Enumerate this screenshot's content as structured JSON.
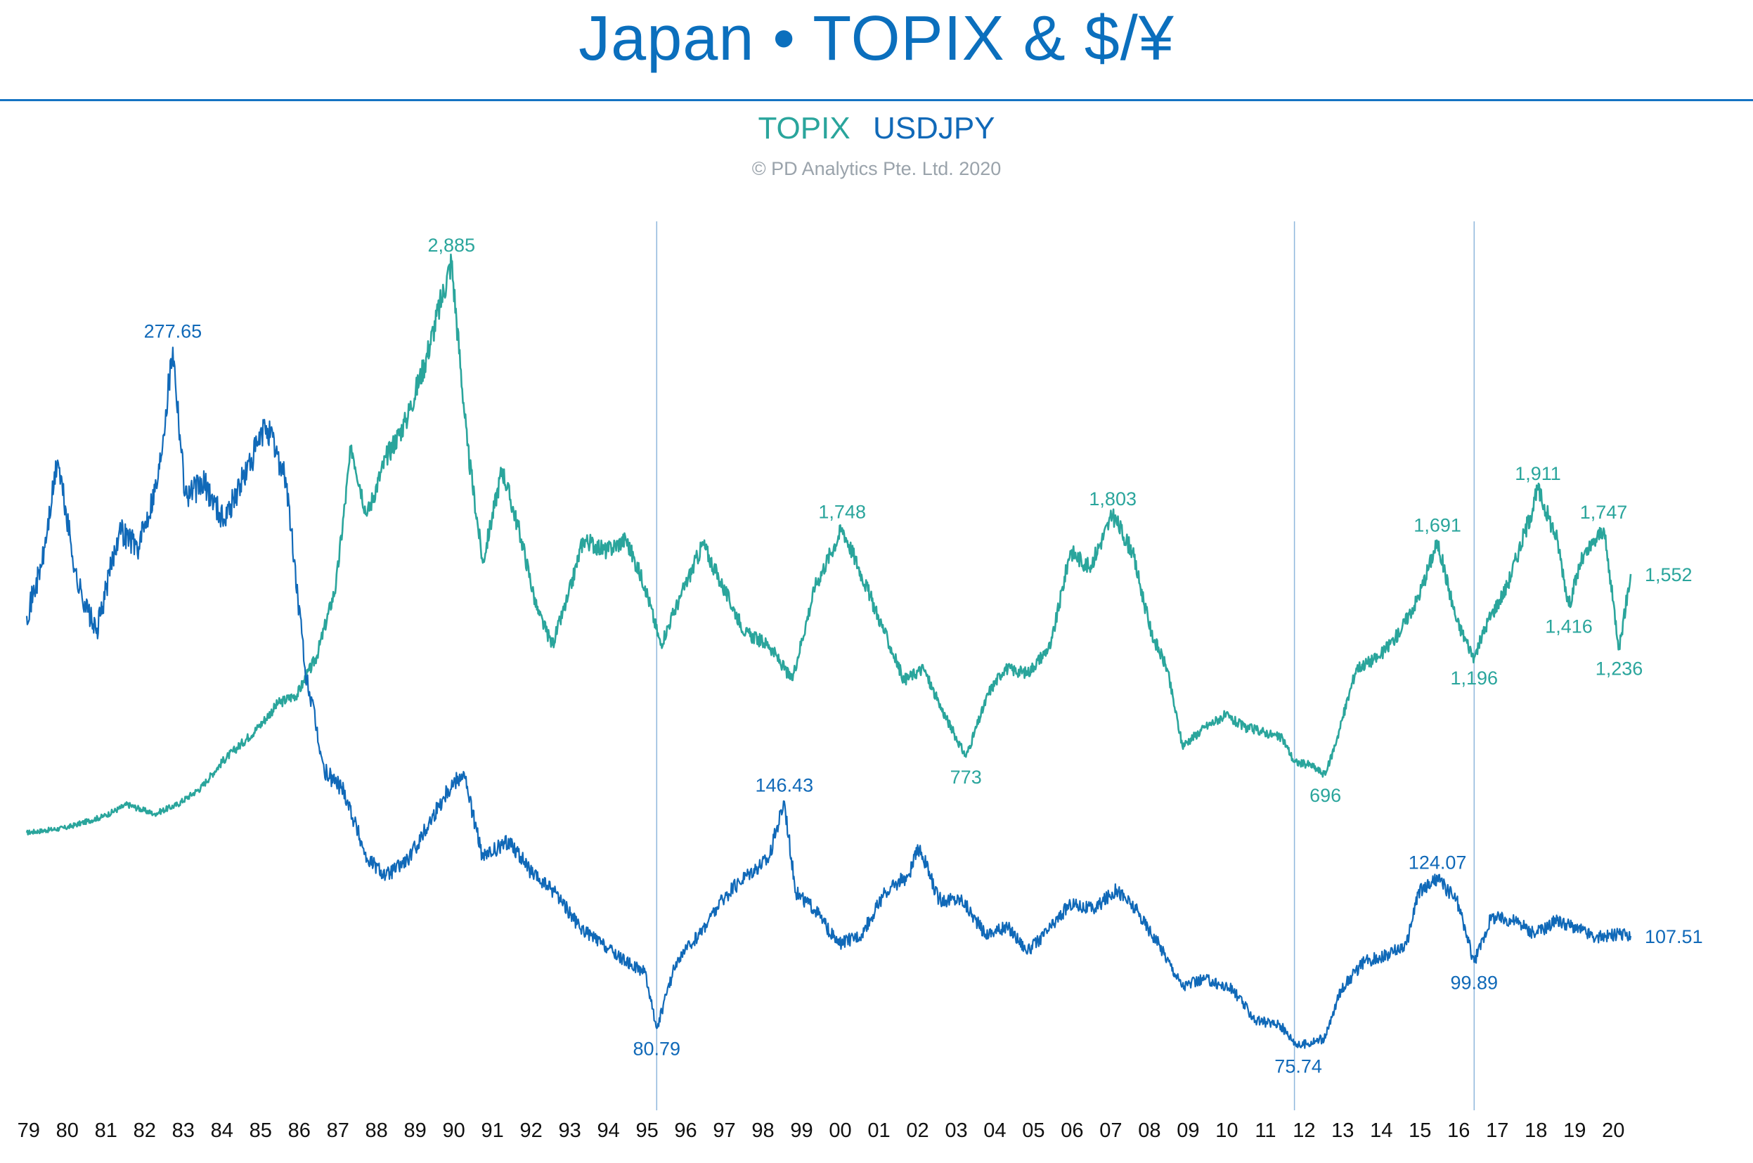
{
  "title": "Japan • TOPIX & $/¥",
  "legend": [
    {
      "name": "TOPIX",
      "color": "#2aa59c"
    },
    {
      "name": "USDJPY",
      "color": "#1069b8"
    }
  ],
  "copyright": "© PD Analytics Pte. Ltd. 2020",
  "chart_data": {
    "type": "line",
    "x_ticks": [
      "79",
      "80",
      "81",
      "82",
      "83",
      "84",
      "85",
      "86",
      "87",
      "88",
      "89",
      "90",
      "91",
      "92",
      "93",
      "94",
      "95",
      "96",
      "97",
      "98",
      "99",
      "00",
      "01",
      "02",
      "03",
      "04",
      "05",
      "06",
      "07",
      "08",
      "09",
      "10",
      "11",
      "12",
      "13",
      "14",
      "15",
      "16",
      "17",
      "18",
      "19",
      "20"
    ],
    "x_range": [
      1979.0,
      2020.5
    ],
    "vertical_markers": [
      1995.3,
      2011.8,
      2016.45
    ],
    "series": [
      {
        "name": "TOPIX",
        "color": "#2aa59c",
        "y_range": [
          300,
          3100
        ],
        "points": [
          [
            1979.0,
            450
          ],
          [
            1980.0,
            470
          ],
          [
            1981.0,
            520
          ],
          [
            1981.6,
            570
          ],
          [
            1982.3,
            530
          ],
          [
            1982.9,
            570
          ],
          [
            1983.5,
            640
          ],
          [
            1984.1,
            760
          ],
          [
            1984.5,
            820
          ],
          [
            1985.0,
            900
          ],
          [
            1985.5,
            1000
          ],
          [
            1986.0,
            1040
          ],
          [
            1986.5,
            1200
          ],
          [
            1987.0,
            1500
          ],
          [
            1987.4,
            2100
          ],
          [
            1987.8,
            1800
          ],
          [
            1988.3,
            2050
          ],
          [
            1988.8,
            2200
          ],
          [
            1989.3,
            2450
          ],
          [
            1989.99,
            2885
          ],
          [
            1990.4,
            2100
          ],
          [
            1990.8,
            1600
          ],
          [
            1991.3,
            2000
          ],
          [
            1991.8,
            1700
          ],
          [
            1992.2,
            1400
          ],
          [
            1992.6,
            1250
          ],
          [
            1993.0,
            1450
          ],
          [
            1993.4,
            1700
          ],
          [
            1994.0,
            1650
          ],
          [
            1994.5,
            1700
          ],
          [
            1995.0,
            1500
          ],
          [
            1995.4,
            1250
          ],
          [
            1995.9,
            1450
          ],
          [
            1996.5,
            1680
          ],
          [
            1997.0,
            1500
          ],
          [
            1997.6,
            1300
          ],
          [
            1998.2,
            1250
          ],
          [
            1998.8,
            1100
          ],
          [
            1999.4,
            1500
          ],
          [
            2000.1,
            1748
          ],
          [
            2000.6,
            1550
          ],
          [
            2001.2,
            1300
          ],
          [
            2001.7,
            1100
          ],
          [
            2002.2,
            1150
          ],
          [
            2002.6,
            1000
          ],
          [
            2003.3,
            773
          ],
          [
            2003.9,
            1050
          ],
          [
            2004.3,
            1150
          ],
          [
            2004.9,
            1130
          ],
          [
            2005.5,
            1250
          ],
          [
            2006.0,
            1650
          ],
          [
            2006.5,
            1580
          ],
          [
            2007.1,
            1803
          ],
          [
            2007.6,
            1650
          ],
          [
            2008.1,
            1300
          ],
          [
            2008.5,
            1150
          ],
          [
            2008.9,
            820
          ],
          [
            2009.5,
            900
          ],
          [
            2010.0,
            950
          ],
          [
            2010.5,
            900
          ],
          [
            2011.0,
            880
          ],
          [
            2011.5,
            850
          ],
          [
            2011.8,
            750
          ],
          [
            2012.2,
            740
          ],
          [
            2012.6,
            696
          ],
          [
            2012.9,
            850
          ],
          [
            2013.4,
            1150
          ],
          [
            2014.0,
            1200
          ],
          [
            2014.5,
            1300
          ],
          [
            2015.0,
            1450
          ],
          [
            2015.5,
            1691
          ],
          [
            2016.0,
            1350
          ],
          [
            2016.45,
            1196
          ],
          [
            2016.8,
            1350
          ],
          [
            2017.3,
            1500
          ],
          [
            2017.9,
            1800
          ],
          [
            2018.1,
            1911
          ],
          [
            2018.6,
            1700
          ],
          [
            2018.9,
            1416
          ],
          [
            2019.2,
            1600
          ],
          [
            2019.8,
            1747
          ],
          [
            2020.2,
            1236
          ],
          [
            2020.5,
            1552
          ]
        ]
      },
      {
        "name": "USDJPY",
        "color": "#1069b8",
        "y_range": [
          50,
          310
        ],
        "points": [
          [
            1979.0,
            200
          ],
          [
            1979.4,
            215
          ],
          [
            1979.8,
            245
          ],
          [
            1980.3,
            210
          ],
          [
            1980.8,
            195
          ],
          [
            1981.4,
            225
          ],
          [
            1981.9,
            220
          ],
          [
            1982.4,
            240
          ],
          [
            1982.78,
            277.65
          ],
          [
            1983.1,
            235
          ],
          [
            1983.6,
            238
          ],
          [
            1984.1,
            228
          ],
          [
            1984.7,
            242
          ],
          [
            1985.2,
            255
          ],
          [
            1985.7,
            240
          ],
          [
            1986.2,
            185
          ],
          [
            1986.7,
            155
          ],
          [
            1987.2,
            150
          ],
          [
            1987.8,
            130
          ],
          [
            1988.3,
            125
          ],
          [
            1988.9,
            130
          ],
          [
            1989.4,
            140
          ],
          [
            1989.9,
            150
          ],
          [
            1990.3,
            155
          ],
          [
            1990.8,
            130
          ],
          [
            1991.5,
            135
          ],
          [
            1992.1,
            125
          ],
          [
            1992.7,
            120
          ],
          [
            1993.3,
            110
          ],
          [
            1993.9,
            105
          ],
          [
            1994.5,
            100
          ],
          [
            1995.0,
            97
          ],
          [
            1995.3,
            80.79
          ],
          [
            1995.8,
            100
          ],
          [
            1996.4,
            108
          ],
          [
            1997.0,
            118
          ],
          [
            1997.6,
            125
          ],
          [
            1998.2,
            130
          ],
          [
            1998.6,
            146.43
          ],
          [
            1998.9,
            120
          ],
          [
            1999.4,
            115
          ],
          [
            2000.0,
            105
          ],
          [
            2000.6,
            108
          ],
          [
            2001.2,
            120
          ],
          [
            2001.8,
            125
          ],
          [
            2002.1,
            133
          ],
          [
            2002.6,
            118
          ],
          [
            2003.2,
            118
          ],
          [
            2003.8,
            108
          ],
          [
            2004.4,
            110
          ],
          [
            2004.9,
            103
          ],
          [
            2005.5,
            110
          ],
          [
            2006.0,
            117
          ],
          [
            2006.6,
            115
          ],
          [
            2007.2,
            121
          ],
          [
            2007.7,
            115
          ],
          [
            2008.3,
            105
          ],
          [
            2008.9,
            93
          ],
          [
            2009.5,
            95
          ],
          [
            2010.2,
            92
          ],
          [
            2010.8,
            83
          ],
          [
            2011.4,
            82
          ],
          [
            2011.9,
            75.74
          ],
          [
            2012.6,
            78
          ],
          [
            2013.0,
            92
          ],
          [
            2013.6,
            100
          ],
          [
            2014.2,
            102
          ],
          [
            2014.7,
            105
          ],
          [
            2015.0,
            120
          ],
          [
            2015.5,
            124.07
          ],
          [
            2016.0,
            118
          ],
          [
            2016.45,
            99.89
          ],
          [
            2016.9,
            113
          ],
          [
            2017.5,
            112
          ],
          [
            2018.0,
            108
          ],
          [
            2018.6,
            112
          ],
          [
            2019.1,
            110
          ],
          [
            2019.6,
            107
          ],
          [
            2020.2,
            108
          ],
          [
            2020.5,
            107.51
          ]
        ]
      }
    ]
  },
  "annotations": {
    "topix": [
      {
        "text": "2,885",
        "x": 1989.99,
        "y": 2885,
        "pos": "above"
      },
      {
        "text": "1,748",
        "x": 2000.1,
        "y": 1748,
        "pos": "above"
      },
      {
        "text": "773",
        "x": 2003.3,
        "y": 773,
        "pos": "below"
      },
      {
        "text": "1,803",
        "x": 2007.1,
        "y": 1803,
        "pos": "above"
      },
      {
        "text": "696",
        "x": 2012.6,
        "y": 696,
        "pos": "below"
      },
      {
        "text": "1,691",
        "x": 2015.5,
        "y": 1691,
        "pos": "above"
      },
      {
        "text": "1,196",
        "x": 2016.45,
        "y": 1196,
        "pos": "below"
      },
      {
        "text": "1,911",
        "x": 2018.1,
        "y": 1911,
        "pos": "above"
      },
      {
        "text": "1,416",
        "x": 2018.9,
        "y": 1416,
        "pos": "below"
      },
      {
        "text": "1,747",
        "x": 2019.8,
        "y": 1747,
        "pos": "above"
      },
      {
        "text": "1,236",
        "x": 2020.2,
        "y": 1236,
        "pos": "below"
      },
      {
        "text": "1,552",
        "x": 2020.5,
        "y": 1552,
        "pos": "right"
      }
    ],
    "usdjpy": [
      {
        "text": "277.65",
        "x": 1982.78,
        "y": 277.65,
        "pos": "above"
      },
      {
        "text": "80.79",
        "x": 1995.3,
        "y": 80.79,
        "pos": "below"
      },
      {
        "text": "146.43",
        "x": 1998.6,
        "y": 146.43,
        "pos": "above"
      },
      {
        "text": "75.74",
        "x": 2011.9,
        "y": 75.74,
        "pos": "below"
      },
      {
        "text": "124.07",
        "x": 2015.5,
        "y": 124.07,
        "pos": "above"
      },
      {
        "text": "99.89",
        "x": 2016.45,
        "y": 99.89,
        "pos": "below"
      },
      {
        "text": "107.51",
        "x": 2020.5,
        "y": 107.51,
        "pos": "right"
      }
    ]
  }
}
